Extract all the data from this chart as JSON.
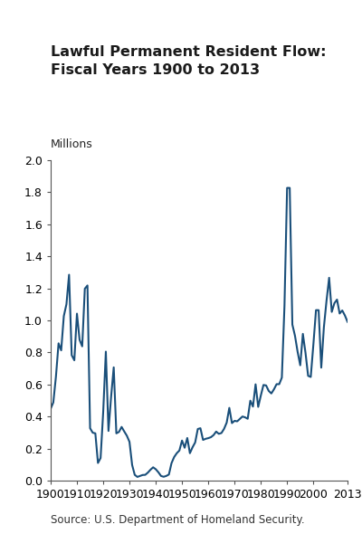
{
  "title": "Lawful Permanent Resident Flow:\nFiscal Years 1900 to 2013",
  "ylabel": "Millions",
  "source": "Source: U.S. Department of Homeland Security.",
  "line_color": "#1a4f7a",
  "background_color": "#ffffff",
  "xlim": [
    1900,
    2013
  ],
  "ylim": [
    0,
    2.0
  ],
  "yticks": [
    0,
    0.2,
    0.4,
    0.6,
    0.8,
    1.0,
    1.2,
    1.4,
    1.6,
    1.8,
    2.0
  ],
  "xticks": [
    1900,
    1910,
    1920,
    1930,
    1940,
    1950,
    1960,
    1970,
    1980,
    1990,
    2000,
    2013
  ],
  "years": [
    1900,
    1901,
    1902,
    1903,
    1904,
    1905,
    1906,
    1907,
    1908,
    1909,
    1910,
    1911,
    1912,
    1913,
    1914,
    1915,
    1916,
    1917,
    1918,
    1919,
    1920,
    1921,
    1922,
    1923,
    1924,
    1925,
    1926,
    1927,
    1928,
    1929,
    1930,
    1931,
    1932,
    1933,
    1934,
    1935,
    1936,
    1937,
    1938,
    1939,
    1940,
    1941,
    1942,
    1943,
    1944,
    1945,
    1946,
    1947,
    1948,
    1949,
    1950,
    1951,
    1952,
    1953,
    1954,
    1955,
    1956,
    1957,
    1958,
    1959,
    1960,
    1961,
    1962,
    1963,
    1964,
    1965,
    1966,
    1967,
    1968,
    1969,
    1970,
    1971,
    1972,
    1973,
    1974,
    1975,
    1976,
    1977,
    1978,
    1979,
    1980,
    1981,
    1982,
    1983,
    1984,
    1985,
    1986,
    1987,
    1988,
    1989,
    1990,
    1991,
    1992,
    1993,
    1994,
    1995,
    1996,
    1997,
    1998,
    1999,
    2000,
    2001,
    2002,
    2003,
    2004,
    2005,
    2006,
    2007,
    2008,
    2009,
    2010,
    2011,
    2012,
    2013
  ],
  "values": [
    0.449,
    0.488,
    0.649,
    0.857,
    0.813,
    1.027,
    1.101,
    1.285,
    0.783,
    0.751,
    1.042,
    0.879,
    0.838,
    1.198,
    1.218,
    0.327,
    0.299,
    0.295,
    0.11,
    0.141,
    0.431,
    0.805,
    0.31,
    0.523,
    0.707,
    0.295,
    0.304,
    0.335,
    0.307,
    0.28,
    0.242,
    0.098,
    0.036,
    0.023,
    0.029,
    0.035,
    0.036,
    0.05,
    0.068,
    0.083,
    0.071,
    0.052,
    0.029,
    0.024,
    0.029,
    0.038,
    0.109,
    0.147,
    0.171,
    0.188,
    0.25,
    0.205,
    0.266,
    0.171,
    0.208,
    0.238,
    0.322,
    0.327,
    0.254,
    0.261,
    0.265,
    0.271,
    0.284,
    0.306,
    0.292,
    0.297,
    0.323,
    0.362,
    0.454,
    0.359,
    0.373,
    0.37,
    0.385,
    0.4,
    0.395,
    0.386,
    0.499,
    0.462,
    0.601,
    0.46,
    0.531,
    0.597,
    0.594,
    0.56,
    0.544,
    0.57,
    0.602,
    0.602,
    0.643,
    1.091,
    1.827,
    1.827,
    0.974,
    0.904,
    0.804,
    0.72,
    0.916,
    0.798,
    0.654,
    0.647,
    0.849,
    1.064,
    1.064,
    0.705,
    0.957,
    1.122,
    1.266,
    1.053,
    1.107,
    1.13,
    1.043,
    1.062,
    1.031,
    0.991
  ],
  "title_fontsize": 11.5,
  "tick_fontsize": 9,
  "source_fontsize": 8.5,
  "ylabel_fontsize": 9
}
